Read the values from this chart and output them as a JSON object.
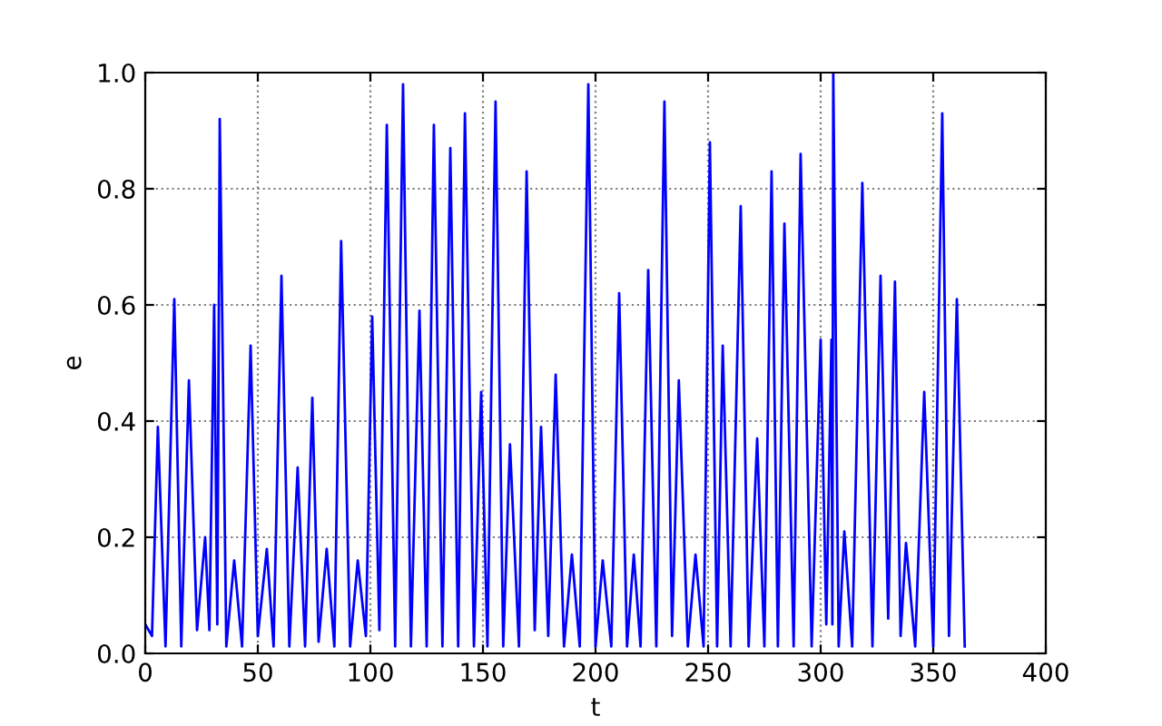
{
  "chart_data": {
    "type": "line",
    "xlabel": "t",
    "ylabel": "e",
    "xlim": [
      0,
      400
    ],
    "xticks": [
      0,
      50,
      100,
      150,
      200,
      250,
      300,
      350,
      400
    ],
    "ylim": [
      0,
      1
    ],
    "yticks": [
      {
        "value": 0,
        "label": "0.0"
      },
      {
        "value": 0.2,
        "label": "0.2"
      },
      {
        "value": 0.4,
        "label": "0.4"
      },
      {
        "value": 0.6,
        "label": "0.6"
      },
      {
        "value": 0.8,
        "label": "0.8"
      },
      {
        "value": 1,
        "label": "1.0"
      }
    ],
    "grid": true,
    "marker": "none",
    "line_style": "solid",
    "series": [
      {
        "color": "#0000ff",
        "x": [
          0,
          3,
          5.6,
          9,
          12.9,
          16,
          19.4,
          23,
          26.6,
          28.5,
          30.6,
          32,
          33.1,
          36,
          39.5,
          43,
          46.8,
          50,
          54,
          57,
          60.5,
          64,
          67.7,
          71,
          74.2,
          77,
          80.6,
          84,
          87,
          91,
          94.4,
          98,
          100.8,
          104,
          107.3,
          111,
          114.5,
          118,
          121.8,
          125,
          128.2,
          132,
          135.5,
          139,
          142,
          146,
          149.2,
          152,
          155.6,
          159,
          162,
          166,
          169.4,
          173,
          175.8,
          179,
          182.3,
          186,
          189.5,
          193,
          196.8,
          200,
          203.2,
          207,
          210.5,
          214,
          217,
          220,
          223.4,
          227,
          230.6,
          234,
          237,
          241,
          244.4,
          248,
          250.8,
          254,
          256.5,
          260,
          264.5,
          268,
          271.8,
          275,
          278.2,
          281,
          283.9,
          288,
          291.1,
          296,
          300,
          302.5,
          304.8,
          305.2,
          305.6,
          308,
          310.5,
          314,
          318.5,
          323,
          326.6,
          330,
          333,
          335.5,
          337.9,
          342,
          346,
          350,
          354,
          357,
          360.5,
          364
        ],
        "values": [
          0.05,
          0.03,
          0.39,
          0.012,
          0.61,
          0.012,
          0.47,
          0.04,
          0.2,
          0.04,
          0.6,
          0.05,
          0.92,
          0.012,
          0.16,
          0.012,
          0.53,
          0.03,
          0.18,
          0.012,
          0.65,
          0.012,
          0.32,
          0.012,
          0.44,
          0.02,
          0.18,
          0.012,
          0.71,
          0.012,
          0.16,
          0.03,
          0.58,
          0.04,
          0.91,
          0.012,
          0.98,
          0.012,
          0.59,
          0.012,
          0.91,
          0.012,
          0.87,
          0.012,
          0.93,
          0.012,
          0.45,
          0.012,
          0.95,
          0.012,
          0.36,
          0.012,
          0.83,
          0.04,
          0.39,
          0.03,
          0.48,
          0.012,
          0.17,
          0.012,
          0.98,
          0.012,
          0.16,
          0.012,
          0.62,
          0.012,
          0.17,
          0.012,
          0.66,
          0.012,
          0.95,
          0.03,
          0.47,
          0.012,
          0.17,
          0.012,
          0.88,
          0.012,
          0.53,
          0.012,
          0.77,
          0.012,
          0.37,
          0.012,
          0.83,
          0.012,
          0.74,
          0.012,
          0.86,
          0.012,
          0.54,
          0.05,
          0.54,
          0.05,
          1.0,
          0.012,
          0.21,
          0.012,
          0.81,
          0.012,
          0.65,
          0.06,
          0.64,
          0.03,
          0.19,
          0.012,
          0.45,
          0.012,
          0.93,
          0.03,
          0.61,
          0.012
        ]
      }
    ]
  }
}
